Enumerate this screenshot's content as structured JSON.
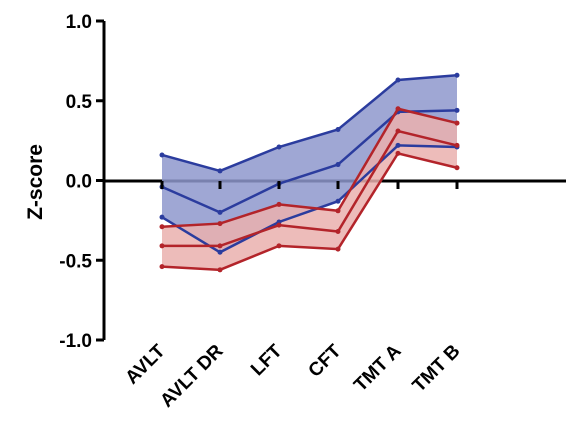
{
  "chart_data": {
    "type": "line",
    "title": "",
    "xlabel": "",
    "ylabel": "Z-score",
    "ylim": [
      -1.0,
      1.0
    ],
    "yticks": [
      1.0,
      0.5,
      0.0,
      -0.5,
      -1.0
    ],
    "ytick_labels": [
      "1.0",
      "0.5",
      "0.0",
      "-0.5",
      "-1.0"
    ],
    "categories": [
      "AVLT",
      "AVLT DR",
      "LFT",
      "CFT",
      "TMT A",
      "TMT B"
    ],
    "grid": false,
    "legend": "none",
    "bands": [
      {
        "color": "#2b3c9e",
        "fill": "#8e98cc",
        "upper": [
          0.16,
          0.06,
          0.21,
          0.32,
          0.63,
          0.66
        ],
        "mean": [
          -0.04,
          -0.2,
          -0.02,
          0.1,
          0.43,
          0.44
        ],
        "lower": [
          -0.23,
          -0.45,
          -0.26,
          -0.13,
          0.22,
          0.21
        ]
      },
      {
        "color": "#b3242a",
        "fill": "#eab0ae",
        "upper": [
          -0.29,
          -0.27,
          -0.15,
          -0.19,
          0.45,
          0.36
        ],
        "mean": [
          -0.41,
          -0.41,
          -0.28,
          -0.32,
          0.31,
          0.22
        ],
        "lower": [
          -0.54,
          -0.56,
          -0.41,
          -0.43,
          0.17,
          0.08
        ]
      }
    ]
  }
}
